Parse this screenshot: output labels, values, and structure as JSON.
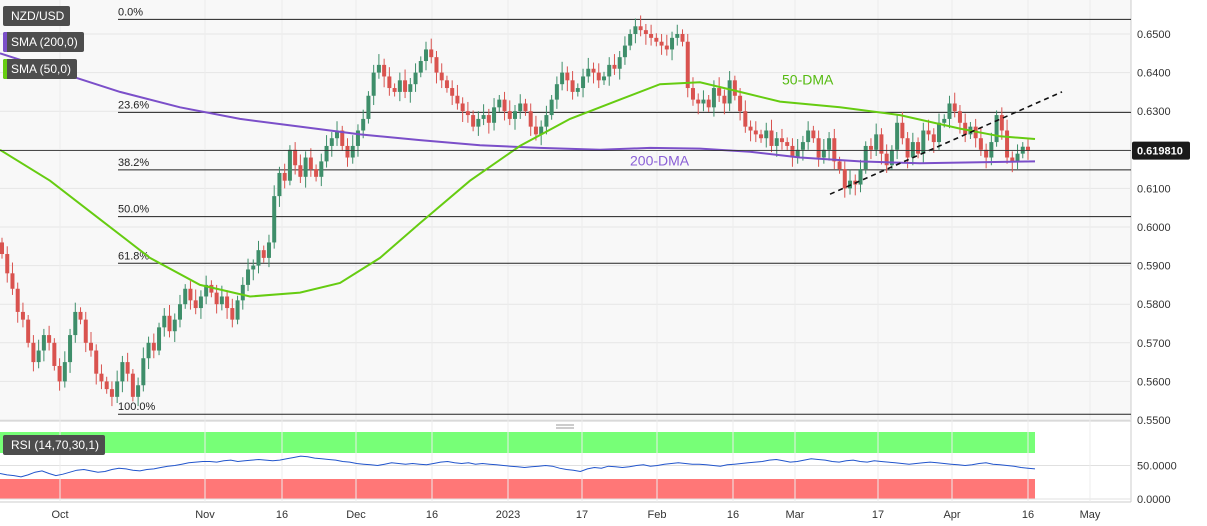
{
  "badges": {
    "symbol": "NZD/USD",
    "sma200": "SMA (200,0)",
    "sma50": "SMA (50,0)",
    "rsi": "RSI (14,70,30,1)"
  },
  "colors": {
    "up": "#3e8e6a",
    "down": "#d9534f",
    "sma200": "#7b4fc9",
    "sma50": "#66cc11",
    "rsi_line": "#2255cc",
    "rsi_over": "#77ff77",
    "rsi_under": "#ff7777"
  },
  "chart_data": [
    {
      "type": "candlestick",
      "title": "NZD/USD",
      "ylim": [
        0.5475,
        0.6545
      ],
      "y_ticks": [
        "0.6500",
        "0.6400",
        "0.6300",
        "0.6200",
        "0.6100",
        "0.6000",
        "0.5900",
        "0.5800",
        "0.5700",
        "0.5600",
        "0.5500"
      ],
      "x_ticks": [
        "Oct",
        "Nov",
        "16",
        "Dec",
        "16",
        "2023",
        "17",
        "Feb",
        "16",
        "Mar",
        "17",
        "Apr",
        "16",
        "May"
      ],
      "current_price": {
        "value": 0.6198,
        "label": "0.619810"
      },
      "fibonacci": [
        {
          "label": "0.0%",
          "value": 0.6538
        },
        {
          "label": "23.6%",
          "value": 0.6297
        },
        {
          "label": "38.2%",
          "value": 0.6148
        },
        {
          "label": "50.0%",
          "value": 0.6027
        },
        {
          "label": "61.8%",
          "value": 0.5906
        },
        {
          "label": "100.0%",
          "value": 0.5515
        }
      ],
      "annotations": {
        "sma50_label": "50-DMA",
        "sma200_label": "200-DMA"
      },
      "close": [
        0.593,
        0.588,
        0.584,
        0.578,
        0.576,
        0.57,
        0.565,
        0.568,
        0.572,
        0.57,
        0.564,
        0.56,
        0.565,
        0.572,
        0.578,
        0.576,
        0.57,
        0.568,
        0.562,
        0.56,
        0.558,
        0.556,
        0.56,
        0.565,
        0.562,
        0.556,
        0.559,
        0.566,
        0.57,
        0.568,
        0.574,
        0.577,
        0.573,
        0.576,
        0.58,
        0.584,
        0.581,
        0.579,
        0.582,
        0.585,
        0.583,
        0.58,
        0.582,
        0.579,
        0.576,
        0.581,
        0.585,
        0.589,
        0.59,
        0.594,
        0.592,
        0.596,
        0.608,
        0.614,
        0.612,
        0.62,
        0.616,
        0.613,
        0.618,
        0.615,
        0.613,
        0.617,
        0.621,
        0.623,
        0.625,
        0.621,
        0.618,
        0.621,
        0.625,
        0.628,
        0.634,
        0.64,
        0.642,
        0.639,
        0.636,
        0.635,
        0.638,
        0.635,
        0.637,
        0.64,
        0.643,
        0.646,
        0.644,
        0.64,
        0.638,
        0.636,
        0.634,
        0.632,
        0.63,
        0.629,
        0.626,
        0.628,
        0.629,
        0.627,
        0.631,
        0.633,
        0.63,
        0.628,
        0.63,
        0.632,
        0.63,
        0.626,
        0.624,
        0.626,
        0.629,
        0.633,
        0.637,
        0.64,
        0.638,
        0.635,
        0.636,
        0.639,
        0.641,
        0.64,
        0.638,
        0.639,
        0.642,
        0.641,
        0.644,
        0.647,
        0.65,
        0.652,
        0.651,
        0.65,
        0.649,
        0.648,
        0.647,
        0.646,
        0.649,
        0.65,
        0.648,
        0.636,
        0.633,
        0.632,
        0.633,
        0.631,
        0.636,
        0.634,
        0.632,
        0.638,
        0.634,
        0.63,
        0.626,
        0.625,
        0.624,
        0.623,
        0.625,
        0.621,
        0.623,
        0.622,
        0.621,
        0.618,
        0.62,
        0.622,
        0.625,
        0.623,
        0.618,
        0.62,
        0.623,
        0.617,
        0.615,
        0.61,
        0.612,
        0.611,
        0.615,
        0.621,
        0.62,
        0.624,
        0.619,
        0.616,
        0.62,
        0.627,
        0.623,
        0.618,
        0.622,
        0.619,
        0.625,
        0.624,
        0.622,
        0.627,
        0.628,
        0.632,
        0.63,
        0.627,
        0.624,
        0.626,
        0.623,
        0.62,
        0.618,
        0.622,
        0.629,
        0.625,
        0.618,
        0.617,
        0.619,
        0.6208,
        0.6198
      ],
      "sma200": [
        [
          0,
          0.645
        ],
        [
          60,
          0.64
        ],
        [
          120,
          0.635
        ],
        [
          180,
          0.631
        ],
        [
          240,
          0.628
        ],
        [
          300,
          0.626
        ],
        [
          360,
          0.624
        ],
        [
          420,
          0.6225
        ],
        [
          480,
          0.6212
        ],
        [
          540,
          0.6205
        ],
        [
          600,
          0.62
        ],
        [
          650,
          0.6205
        ],
        [
          700,
          0.6203
        ],
        [
          750,
          0.6195
        ],
        [
          800,
          0.618
        ],
        [
          860,
          0.617
        ],
        [
          920,
          0.6165
        ],
        [
          980,
          0.6168
        ],
        [
          1035,
          0.617
        ]
      ],
      "sma50": [
        [
          0,
          0.62
        ],
        [
          50,
          0.612
        ],
        [
          100,
          0.602
        ],
        [
          150,
          0.592
        ],
        [
          200,
          0.585
        ],
        [
          250,
          0.582
        ],
        [
          300,
          0.583
        ],
        [
          340,
          0.5855
        ],
        [
          380,
          0.592
        ],
        [
          420,
          0.601
        ],
        [
          470,
          0.612
        ],
        [
          520,
          0.621
        ],
        [
          570,
          0.628
        ],
        [
          620,
          0.633
        ],
        [
          660,
          0.637
        ],
        [
          700,
          0.6375
        ],
        [
          740,
          0.635
        ],
        [
          780,
          0.6325
        ],
        [
          840,
          0.631
        ],
        [
          900,
          0.629
        ],
        [
          960,
          0.6255
        ],
        [
          1000,
          0.6235
        ],
        [
          1035,
          0.6228
        ]
      ],
      "trendline": [
        [
          830,
          0.6085
        ],
        [
          1062,
          0.635
        ]
      ]
    },
    {
      "type": "line",
      "title": "RSI (14,70,30,1)",
      "ylim": [
        0,
        100
      ],
      "y_ticks": [
        "50.0000",
        "0.0000"
      ],
      "overbought": 70,
      "oversold": 30,
      "values": [
        38,
        36,
        35,
        33,
        36,
        40,
        42,
        38,
        35,
        37,
        40,
        43,
        44,
        42,
        40,
        41,
        44,
        46,
        45,
        43,
        42,
        44,
        45,
        47,
        49,
        50,
        52,
        54,
        55,
        56,
        56,
        55,
        57,
        58,
        56,
        57,
        58,
        59,
        58,
        57,
        58,
        60,
        62,
        64,
        63,
        61,
        60,
        59,
        58,
        56,
        55,
        53,
        52,
        51,
        50,
        52,
        54,
        53,
        52,
        53,
        52,
        51,
        53,
        55,
        56,
        54,
        53,
        54,
        52,
        53,
        52,
        51,
        50,
        49,
        48,
        47,
        48,
        49,
        50,
        49,
        46,
        44,
        43,
        41,
        45,
        47,
        46,
        49,
        48,
        47,
        48,
        50,
        51,
        49,
        50,
        52,
        53,
        54,
        53,
        52,
        52,
        51,
        50,
        49,
        51,
        52,
        53,
        54,
        55,
        56,
        58,
        59,
        57,
        55,
        56,
        58,
        60,
        59,
        58,
        56,
        55,
        57,
        58,
        56,
        55,
        57,
        56,
        55,
        54,
        53,
        52,
        53,
        54,
        55,
        54,
        53,
        52,
        51,
        50,
        51,
        53,
        54,
        52,
        51,
        50,
        49,
        47,
        46,
        45
      ]
    }
  ]
}
